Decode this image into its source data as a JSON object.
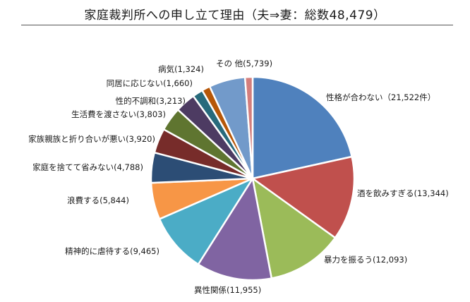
{
  "chart_data": {
    "type": "pie",
    "title": "家庭裁判所への申し立て理由（夫⇒妻：総数48,479）",
    "slices": [
      {
        "label": "性格が合わない",
        "value": 21522,
        "display": "性格が合わない（21,522件）",
        "color": "#4f81bd"
      },
      {
        "label": "酒を飲みすぎる",
        "value": 13344,
        "display": "酒を飲みすぎる(13,344)",
        "color": "#c0504d"
      },
      {
        "label": "暴力を振るう",
        "value": 12093,
        "display": "暴力を振るう(12,093)",
        "color": "#9bbb59"
      },
      {
        "label": "異性関係",
        "value": 11955,
        "display": "異性関係(11,955)",
        "color": "#8064a2"
      },
      {
        "label": "精神的に虐待する",
        "value": 9465,
        "display": "精神的に虐待する(9,465)",
        "color": "#4bacc6"
      },
      {
        "label": "浪費する",
        "value": 5844,
        "display": "浪費する(5,844)",
        "color": "#f79646"
      },
      {
        "label": "家庭を捨てて省みない",
        "value": 4788,
        "display": "家庭を捨てて省みない(4,788)",
        "color": "#2c4d75"
      },
      {
        "label": "家族親族と折り合いが悪い",
        "value": 3920,
        "display": "家族親族と折り合いが悪い(3,920)",
        "color": "#772c2a"
      },
      {
        "label": "生活費を渡さない",
        "value": 3803,
        "display": "生活費を渡さない(3,803)",
        "color": "#5f7530"
      },
      {
        "label": "性的不調和",
        "value": 3213,
        "display": "性的不調和(3,213)",
        "color": "#4d3b62"
      },
      {
        "label": "同居に応じない",
        "value": 1660,
        "display": "同居に応じない(1,660)",
        "color": "#276a7c"
      },
      {
        "label": "病気",
        "value": 1324,
        "display": "病気(1,324)",
        "color": "#b65708"
      },
      {
        "label": "その他",
        "value": 5739,
        "display": "その 他(5,739)",
        "color": "#729aca"
      },
      {
        "label": "",
        "value": 1200,
        "display": "",
        "color": "#d47e7c"
      }
    ]
  }
}
